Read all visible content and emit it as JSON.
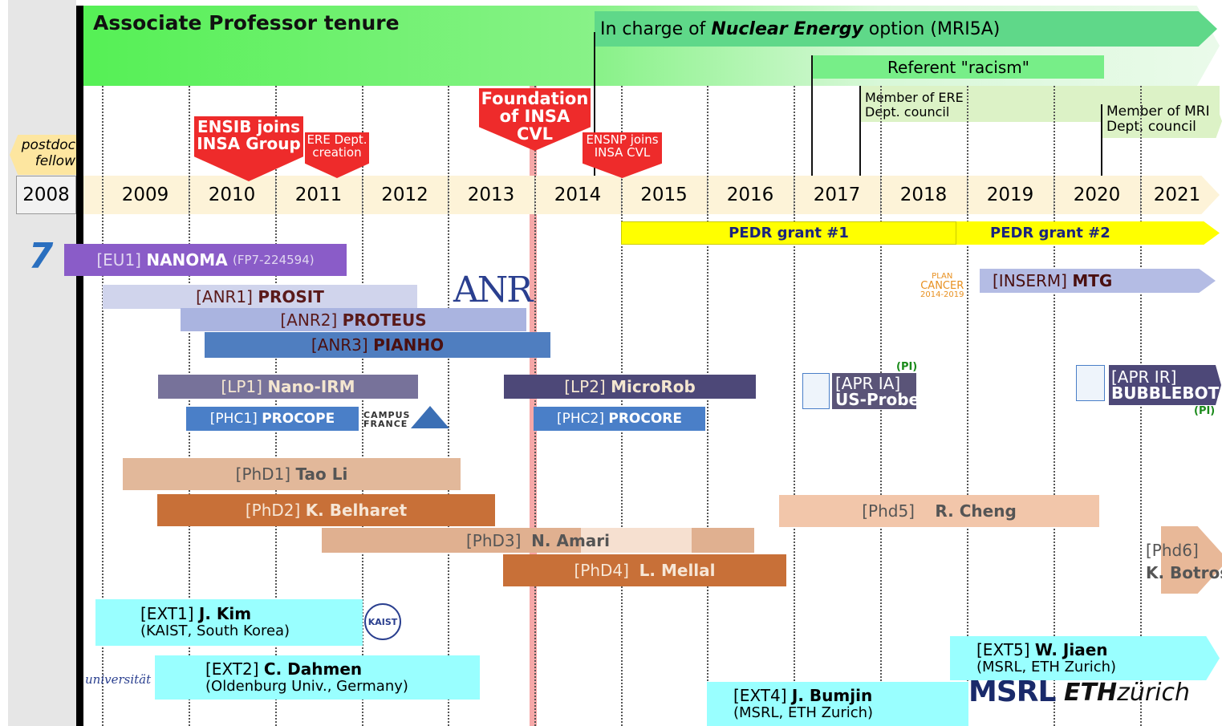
{
  "header": {
    "tenure": "Associate Professor tenure",
    "nuclear": {
      "pre": "In charge of",
      "bold": "Nuclear Energy",
      "post": "option (MRI5A)"
    },
    "referent": "Referent \"racism\"",
    "ere_council": [
      "Member of ERE",
      "Dept. council"
    ],
    "mri_council": [
      "Member of MRI",
      "Dept. council"
    ],
    "postdoc": [
      "postdoc",
      "fellow"
    ]
  },
  "events": [
    {
      "lines": [
        "ENSIB joins",
        "INSA Group"
      ]
    },
    {
      "lines": [
        "ERE Dept.",
        "creation"
      ]
    },
    {
      "lines": [
        "Foundation",
        "of INSA CVL"
      ]
    },
    {
      "lines": [
        "ENSNP joins",
        "INSA CVL"
      ]
    }
  ],
  "years": [
    "2008",
    "2009",
    "2010",
    "2011",
    "2012",
    "2013",
    "2014",
    "2015",
    "2016",
    "2017",
    "2018",
    "2019",
    "2020",
    "2021"
  ],
  "grants": [
    "PEDR grant #1",
    "PEDR grant #2"
  ],
  "projects": [
    {
      "tag": "[EU1]",
      "name": "NANOMA",
      "note": "(FP7-224594)"
    },
    {
      "tag": "[ANR1]",
      "name": "PROSIT"
    },
    {
      "tag": "[ANR2]",
      "name": "PROTEUS"
    },
    {
      "tag": "[ANR3]",
      "name": "PIANHO"
    },
    {
      "tag": "[LP1]",
      "name": "Nano-IRM"
    },
    {
      "tag": "[LP2]",
      "name": "MicroRob"
    },
    {
      "tag": "[PHC1]",
      "name": "PROCOPE"
    },
    {
      "tag": "[PHC2]",
      "name": "PROCORE"
    },
    {
      "tag": "[INSERM]",
      "name": "MTG"
    },
    {
      "tag": "[APR IA]",
      "name": "US-Probe",
      "note": "(PI)"
    },
    {
      "tag": "[APR IR]",
      "name": "BUBBLEBOT",
      "note": "(PI)"
    }
  ],
  "phds": [
    {
      "tag": "[PhD1]",
      "name": "Tao Li"
    },
    {
      "tag": "[PhD2]",
      "name": "K. Belharet"
    },
    {
      "tag": "[PhD3]",
      "name": "N. Amari"
    },
    {
      "tag": "[PhD4]",
      "name": "L. Mellal"
    },
    {
      "tag": "[Phd5]",
      "name": "R. Cheng"
    },
    {
      "tag": "[Phd6]",
      "name": "K. Botros"
    }
  ],
  "externals": [
    {
      "tag": "[EXT1]",
      "name": "J. Kim",
      "place": "(KAIST, South Korea)"
    },
    {
      "tag": "[EXT2]",
      "name": "C. Dahmen",
      "place": "(Oldenburg Univ., Germany)"
    },
    {
      "tag": "[EXT4]",
      "name": "J. Bumjin",
      "place": "(MSRL, ETH Zurich)"
    },
    {
      "tag": "[EXT5]",
      "name": "W. Jiaen",
      "place": "(MSRL, ETH Zurich)"
    }
  ],
  "logos": {
    "fp7": "7",
    "anr": "ANR",
    "campus": [
      "CAMPUS",
      "FRANCE"
    ],
    "kaist": "KAIST",
    "oldenburg": "universität",
    "plan": [
      "PLAN",
      "CANCER",
      "2014-2019"
    ],
    "msrl": "MSRL",
    "eth": "ETH",
    "zurich": "zürich"
  }
}
